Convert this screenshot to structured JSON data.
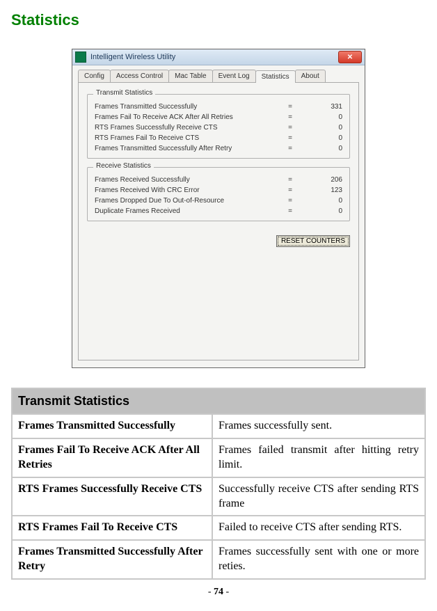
{
  "page": {
    "title": "Statistics",
    "page_number_prefix": "- ",
    "page_number": "74",
    "page_number_suffix": " -"
  },
  "window": {
    "title": "Intelligent Wireless Utility",
    "tabs": [
      "Config",
      "Access Control",
      "Mac Table",
      "Event Log",
      "Statistics",
      "About"
    ],
    "active_tab": "Statistics",
    "transmit": {
      "legend": "Transmit Statistics",
      "rows": [
        {
          "label": "Frames Transmitted Successfully",
          "eq": "=",
          "val": "331"
        },
        {
          "label": "Frames Fail To Receive ACK After All Retries",
          "eq": "=",
          "val": "0"
        },
        {
          "label": "RTS Frames Successfully Receive CTS",
          "eq": "=",
          "val": "0"
        },
        {
          "label": "RTS Frames Fail To Receive CTS",
          "eq": "=",
          "val": "0"
        },
        {
          "label": "Frames Transmitted Successfully After Retry",
          "eq": "=",
          "val": "0"
        }
      ]
    },
    "receive": {
      "legend": "Receive Statistics",
      "rows": [
        {
          "label": "Frames Received Successfully",
          "eq": "=",
          "val": "206"
        },
        {
          "label": "Frames Received With CRC Error",
          "eq": "=",
          "val": "123"
        },
        {
          "label": "Frames Dropped Due To Out-of-Resource",
          "eq": "=",
          "val": "0"
        },
        {
          "label": "Duplicate Frames Received",
          "eq": "=",
          "val": "0"
        }
      ]
    },
    "reset_button": "RESET COUNTERS"
  },
  "desc": {
    "section_header": "Transmit Statistics",
    "rows": [
      {
        "label": "Frames Transmitted Successfully",
        "desc": "Frames successfully sent."
      },
      {
        "label": "Frames Fail To Receive ACK After All Retries",
        "desc": "Frames failed transmit after hitting retry limit."
      },
      {
        "label": "RTS Frames Successfully Receive CTS",
        "desc": "Successfully receive CTS after sending RTS frame"
      },
      {
        "label": "RTS Frames Fail To Receive CTS",
        "desc": "Failed to receive CTS after sending RTS."
      },
      {
        "label": "Frames Transmitted Successfully After Retry",
        "desc": "Frames successfully sent with one or more reties."
      }
    ]
  }
}
